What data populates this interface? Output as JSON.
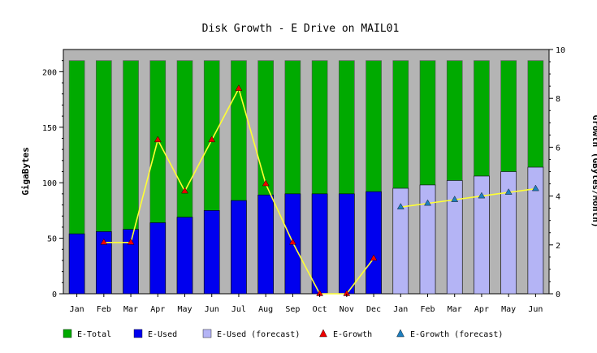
{
  "chart_data": {
    "type": "bar",
    "title": "Disk Growth - E Drive on MAIL01",
    "xlabel": "",
    "ylabel": "GigaBytes",
    "ylabel_right": "Growth (GBytes/Month)",
    "ylim": [
      0,
      220
    ],
    "ylim_right": [
      0,
      10
    ],
    "yticks": [
      "0",
      "50",
      "100",
      "150",
      "200"
    ],
    "yticks_right": [
      "0",
      "2",
      "4",
      "6",
      "8",
      "10"
    ],
    "categories": [
      "Jan",
      "Feb",
      "Mar",
      "Apr",
      "May",
      "Jun",
      "Jul",
      "Aug",
      "Sep",
      "Oct",
      "Nov",
      "Dec",
      "Jan",
      "Feb",
      "Mar",
      "Apr",
      "May",
      "Jun"
    ],
    "grid": false,
    "legend_position": "bottom",
    "series": [
      {
        "name": "E-Total",
        "kind": "bar",
        "color": "#00aa00",
        "values": [
          210,
          210,
          210,
          210,
          210,
          210,
          210,
          210,
          210,
          210,
          210,
          210,
          210,
          210,
          210,
          210,
          210,
          210
        ]
      },
      {
        "name": "E-Used",
        "kind": "bar",
        "color": "#0000ee",
        "values": [
          54,
          56,
          58,
          64,
          69,
          75,
          84,
          89,
          90,
          90,
          90,
          92,
          null,
          null,
          null,
          null,
          null,
          null
        ]
      },
      {
        "name": "E-Used (forecast)",
        "kind": "bar",
        "color": "#b4b4f5",
        "values": [
          null,
          null,
          null,
          null,
          null,
          null,
          null,
          null,
          null,
          null,
          null,
          null,
          95,
          98,
          102,
          106,
          110,
          114
        ]
      },
      {
        "name": "E-Growth",
        "kind": "line",
        "axis": "right",
        "color": "#ee0000",
        "line_color": "#ffff33",
        "values": [
          null,
          2.1,
          2.1,
          6.3,
          4.2,
          6.3,
          8.4,
          4.5,
          2.1,
          0,
          0,
          1.45,
          null,
          null,
          null,
          null,
          null,
          null
        ]
      },
      {
        "name": "E-Growth (forecast)",
        "kind": "line",
        "axis": "right",
        "color": "#1f7fbf",
        "line_color": "#ffff33",
        "values": [
          null,
          null,
          null,
          null,
          null,
          null,
          null,
          null,
          null,
          null,
          null,
          null,
          3.55,
          3.7,
          3.85,
          4.0,
          4.15,
          4.3
        ]
      }
    ]
  },
  "colors": {
    "plot_background": "#b4b4b4",
    "total": "#00aa00",
    "used": "#0000ee",
    "used_forecast": "#b4b4f5",
    "growth_marker": "#ee0000",
    "growth_forecast_marker": "#1f7fbf",
    "growth_line": "#ffff33"
  }
}
